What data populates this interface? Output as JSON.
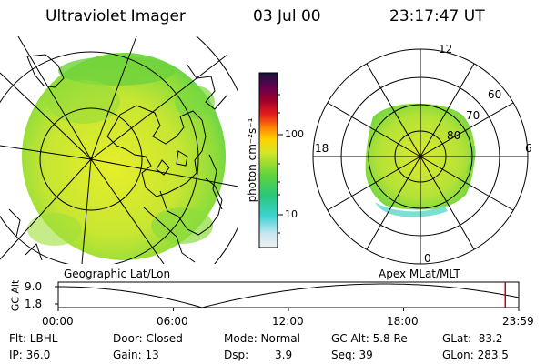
{
  "header": {
    "instrument": "Ultraviolet Imager",
    "date": "03 Jul 00",
    "time": "23:17:47 UT"
  },
  "colorbar": {
    "unit_label": "photon cm⁻²s⁻¹",
    "ticks": [
      "100",
      "10"
    ],
    "scale": "log"
  },
  "panels": {
    "left_caption": "Geographic Lat/Lon",
    "right_caption": "Apex MLat/MLT"
  },
  "polar_plot": {
    "mlt_labels": {
      "top": "12",
      "left": "18",
      "right": "6",
      "bottom": "0"
    },
    "lat_labels": [
      "60",
      "70",
      "80"
    ]
  },
  "altitude_strip": {
    "axis_label": "GC Alt",
    "y_ticks": [
      "9.0",
      "1.8"
    ],
    "x_ticks": [
      "00:00",
      "06:00",
      "12:00",
      "18:00",
      "23:59"
    ],
    "current_marker_hours": 23.3,
    "marker_color": "#cc0000"
  },
  "info": {
    "filter": "Flt: LBHL",
    "door": "Door: Closed",
    "mode": "Mode: Normal",
    "gc_alt": "GC Alt: 5.8 Re",
    "glat": "GLat:  83.2",
    "ip": "IP: 36.0",
    "gain": "Gain: 13",
    "dsp": "Dsp:",
    "dsp_value": "3.9",
    "seq": "Seq: 39",
    "glon": "GLon: 283.5"
  },
  "colors": {
    "aurora_main": "#c8e632",
    "aurora_green": "#6ed23c",
    "aurora_cyan": "#5ad7c8",
    "background": "#ffffff"
  }
}
